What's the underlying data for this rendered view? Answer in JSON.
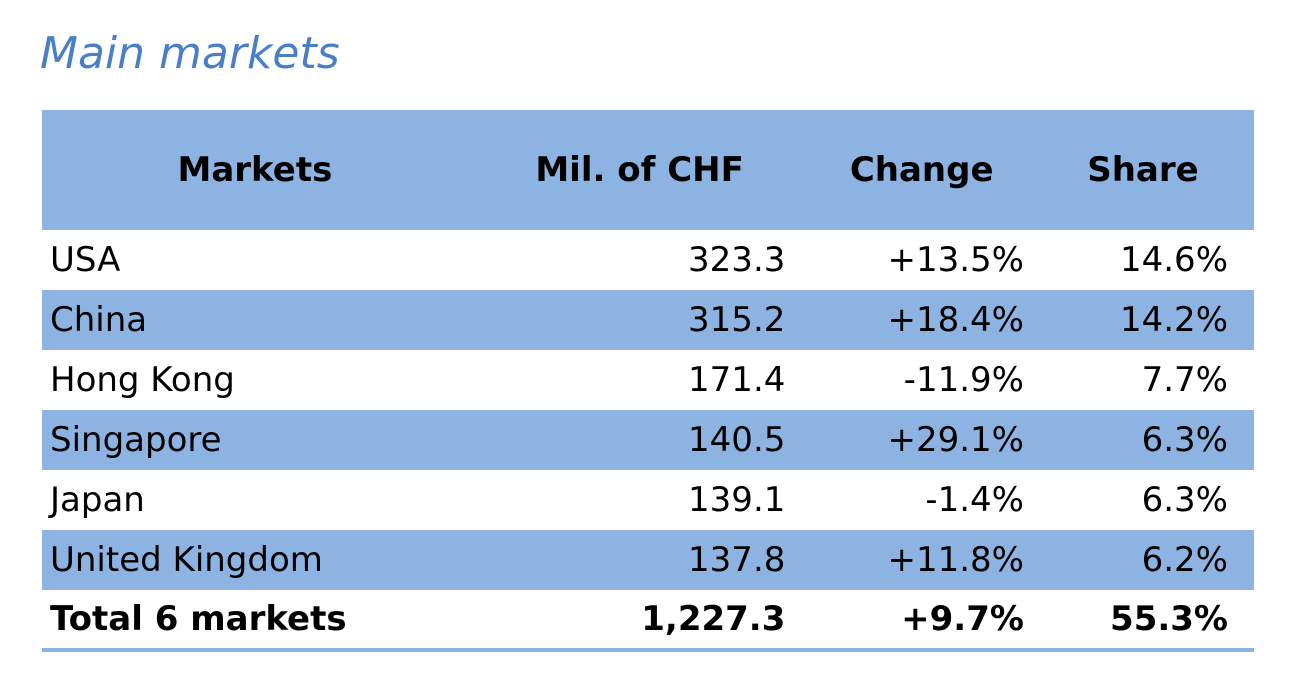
{
  "title": "Main markets",
  "table": {
    "header": [
      "Markets",
      "Mil. of CHF",
      "Change",
      "Share"
    ],
    "rows": [
      [
        "USA",
        "323.3",
        "+13.5%",
        "14.6%"
      ],
      [
        "China",
        "315.2",
        "+18.4%",
        "14.2%"
      ],
      [
        "Hong Kong",
        "171.4",
        "-11.9%",
        "7.7%"
      ],
      [
        "Singapore",
        "140.5",
        "+29.1%",
        "6.3%"
      ],
      [
        "Japan",
        "139.1",
        "-1.4%",
        "6.3%"
      ],
      [
        "United Kingdom",
        "137.8",
        "+11.8%",
        "6.2%"
      ]
    ],
    "total": [
      "Total 6 markets",
      "1,227.3",
      "+9.7%",
      "55.3%"
    ]
  }
}
